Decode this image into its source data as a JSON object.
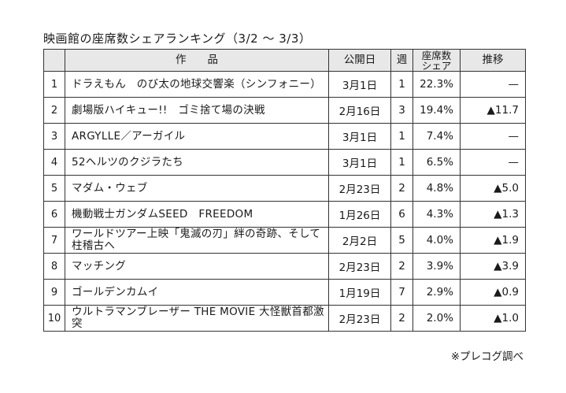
{
  "title": "映画館の座席数シェアランキング（3/2 ～ 3/3）",
  "headers": {
    "rank": "",
    "title": "作　　品",
    "release": "公開日",
    "week": "週",
    "share": "座席数\nシェア",
    "trend": "推移"
  },
  "rows": [
    {
      "rank": "1",
      "title": "ドラえもん　のび太の地球交響楽（シンフォニー）",
      "release": "3月1日",
      "week": "1",
      "share": "22.3%",
      "trend": "—"
    },
    {
      "rank": "2",
      "title": "劇場版ハイキュー!!　ゴミ捨て場の決戦",
      "release": "2月16日",
      "week": "3",
      "share": "19.4%",
      "trend": "▲11.7"
    },
    {
      "rank": "3",
      "title": "ARGYLLE／アーガイル",
      "release": "3月1日",
      "week": "1",
      "share": "7.4%",
      "trend": "—"
    },
    {
      "rank": "4",
      "title": "52ヘルツのクジラたち",
      "release": "3月1日",
      "week": "1",
      "share": "6.5%",
      "trend": "—"
    },
    {
      "rank": "5",
      "title": "マダム・ウェブ",
      "release": "2月23日",
      "week": "2",
      "share": "4.8%",
      "trend": "▲5.0"
    },
    {
      "rank": "6",
      "title": "機動戦士ガンダムSEED　FREEDOM",
      "release": "1月26日",
      "week": "6",
      "share": "4.3%",
      "trend": "▲1.3"
    },
    {
      "rank": "7",
      "title": "ワールドツアー上映「鬼滅の刃」絆の奇跡、そして柱稽古へ",
      "release": "2月2日",
      "week": "5",
      "share": "4.0%",
      "trend": "▲1.9"
    },
    {
      "rank": "8",
      "title": "マッチング",
      "release": "2月23日",
      "week": "2",
      "share": "3.9%",
      "trend": "▲3.9"
    },
    {
      "rank": "9",
      "title": "ゴールデンカムイ",
      "release": "1月19日",
      "week": "7",
      "share": "2.9%",
      "trend": "▲0.9"
    },
    {
      "rank": "10",
      "title": "ウルトラマンブレーザー THE MOVIE 大怪獣首都激突",
      "release": "2月23日",
      "week": "2",
      "share": "2.0%",
      "trend": "▲1.0"
    }
  ],
  "credit": "※プレコグ調べ"
}
